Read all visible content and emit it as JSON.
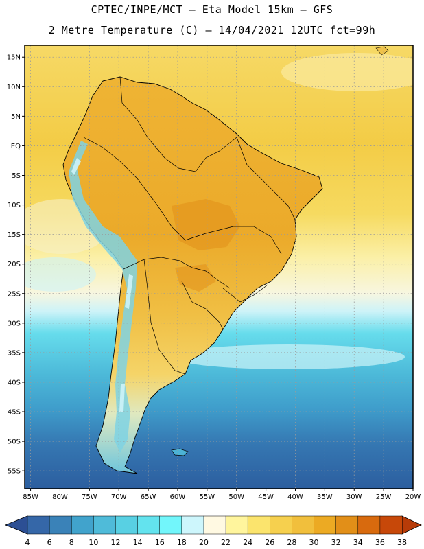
{
  "title": {
    "line1": "CPTEC/INPE/MCT –  Eta Model 15km – GFS",
    "line2": "2 Metre Temperature (C) – 14/04/2021 12UTC fct=99h"
  },
  "map": {
    "region": "South America",
    "lon_range": [
      -86,
      -20
    ],
    "lat_range": [
      -58,
      17
    ],
    "lat_labels": [
      "15N",
      "10N",
      "5N",
      "EQ",
      "5S",
      "10S",
      "15S",
      "20S",
      "25S",
      "30S",
      "35S",
      "40S",
      "45S",
      "50S",
      "55S"
    ],
    "lat_values": [
      15,
      10,
      5,
      0,
      -5,
      -10,
      -15,
      -20,
      -25,
      -30,
      -35,
      -40,
      -45,
      -50,
      -55
    ],
    "lon_labels": [
      "85W",
      "80W",
      "75W",
      "70W",
      "65W",
      "60W",
      "55W",
      "50W",
      "45W",
      "40W",
      "35W",
      "30W",
      "25W",
      "20W"
    ],
    "lon_values": [
      -85,
      -80,
      -75,
      -70,
      -65,
      -60,
      -55,
      -50,
      -45,
      -40,
      -35,
      -30,
      -25,
      -20
    ]
  },
  "colorbar": {
    "labels": [
      "4",
      "6",
      "8",
      "10",
      "12",
      "14",
      "16",
      "18",
      "20",
      "22",
      "24",
      "26",
      "28",
      "30",
      "32",
      "34",
      "36",
      "38"
    ],
    "colors": [
      "#3567a8",
      "#3a82b8",
      "#41a3cc",
      "#4fbbd9",
      "#58d0e3",
      "#63e3ee",
      "#72f6fb",
      "#cdf6fc",
      "#fff9e2",
      "#fff59d",
      "#fbe46d",
      "#f6d04e",
      "#f1bf3c",
      "#ecaa23",
      "#e28f18",
      "#d86a0e",
      "#c74809"
    ],
    "low_arrow_color": "#2c4f94",
    "high_arrow_color": "#b73b08"
  },
  "colors": {
    "deep_ocean": "#2c5e9f",
    "ocean_blue": "#3a85ba",
    "ocean_mid": "#4cb3d6",
    "ocean_cyan": "#66dcec",
    "ocean_light": "#ccf3f8",
    "warm_sea": "#f7dd6a",
    "tropical_sea": "#f3cd47",
    "land_hot": "#eaa324",
    "land_warm": "#f0b53a",
    "andes_cold": "#7fd2e3",
    "grid_line": "#9a9a9a",
    "border": "#000000"
  }
}
